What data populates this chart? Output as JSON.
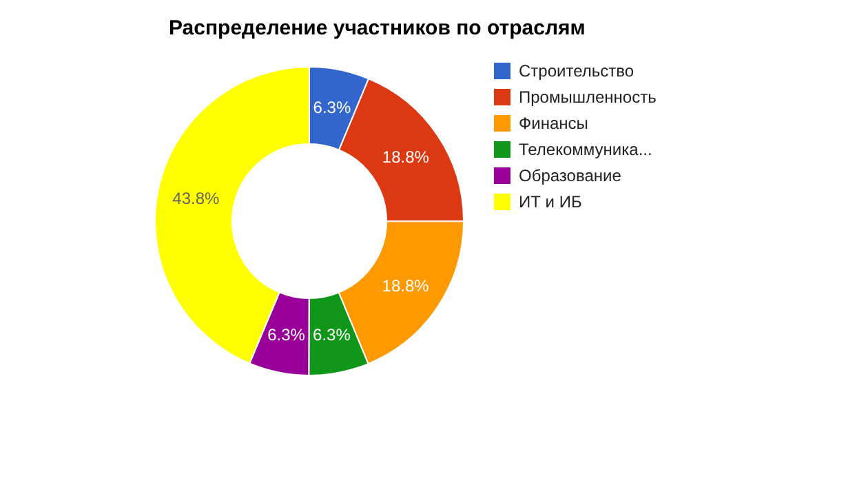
{
  "chart_data": {
    "type": "donut",
    "title": "Распределение участников по отраслям",
    "categories": [
      "Строительство",
      "Промышленность",
      "Финансы",
      "Телекоммуника...",
      "Образование",
      "ИТ и ИБ"
    ],
    "values": [
      6.3,
      18.8,
      18.8,
      6.3,
      6.3,
      43.8
    ],
    "colors": [
      "#3366cc",
      "#dc3912",
      "#ff9900",
      "#109618",
      "#990099",
      "#ffff00"
    ],
    "value_labels": [
      "6.3%",
      "18.8%",
      "18.8%",
      "6.3%",
      "6.3%",
      "43.8%"
    ],
    "legend": "right"
  }
}
